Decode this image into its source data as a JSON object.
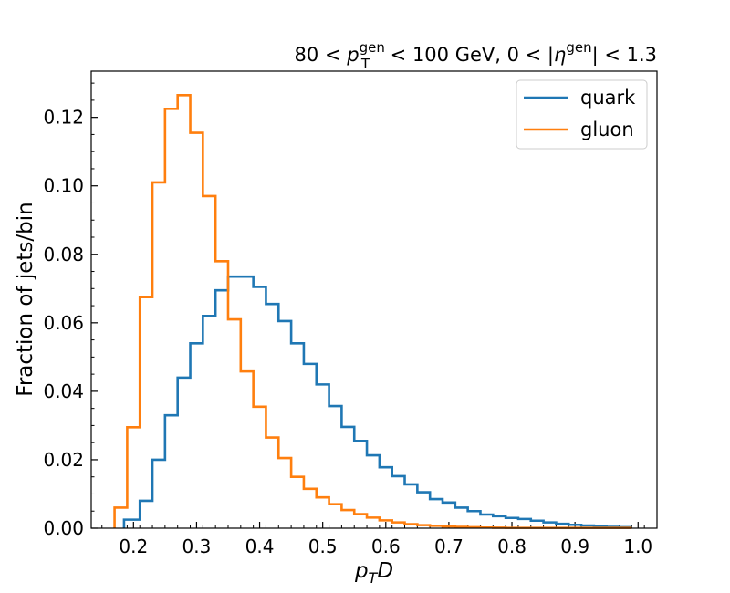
{
  "chart_data": {
    "type": "line",
    "title": {
      "prefix": "80 < ",
      "var1_base": "p",
      "var1_sub": "T",
      "var1_sup": "gen",
      "mid": " < 100 GeV, 0 < |",
      "var2_base": "η",
      "var2_sup": "gen",
      "suffix": "| < 1.3"
    },
    "xlabel": {
      "base": "p",
      "sub": "T",
      "rest": "D"
    },
    "ylabel": "Fraction of jets/bin",
    "xlim": [
      0.133,
      1.03
    ],
    "ylim": [
      0.0,
      0.1335
    ],
    "xticks": [
      0.2,
      0.3,
      0.4,
      0.5,
      0.6,
      0.7,
      0.8,
      0.9,
      1.0
    ],
    "xtick_labels": [
      "0.2",
      "0.3",
      "0.4",
      "0.5",
      "0.6",
      "0.7",
      "0.8",
      "0.9",
      "1.0"
    ],
    "yticks": [
      0.0,
      0.02,
      0.04,
      0.06,
      0.08,
      0.1,
      0.12
    ],
    "ytick_labels": [
      "0.00",
      "0.02",
      "0.04",
      "0.06",
      "0.08",
      "0.10",
      "0.12"
    ],
    "legend_position": "top-right",
    "bin_edges": [
      0.17,
      0.19,
      0.21,
      0.23,
      0.25,
      0.27,
      0.29,
      0.31,
      0.33,
      0.35,
      0.37,
      0.39,
      0.41,
      0.43,
      0.45,
      0.47,
      0.49,
      0.51,
      0.53,
      0.55,
      0.57,
      0.59,
      0.61,
      0.63,
      0.65,
      0.67,
      0.69,
      0.71,
      0.73,
      0.75,
      0.77,
      0.79,
      0.81,
      0.83,
      0.85,
      0.87,
      0.89,
      0.91,
      0.93,
      0.95,
      0.97,
      0.99
    ],
    "series": [
      {
        "name": "quark",
        "color": "#1f77b4",
        "start_edge": 0.185,
        "values": [
          0.0025,
          0.008,
          0.02,
          0.033,
          0.044,
          0.054,
          0.062,
          0.0695,
          0.0735,
          0.0735,
          0.0705,
          0.0655,
          0.0605,
          0.054,
          0.048,
          0.042,
          0.0357,
          0.0296,
          0.0255,
          0.0213,
          0.0178,
          0.0152,
          0.0128,
          0.0105,
          0.0085,
          0.0075,
          0.006,
          0.005,
          0.004,
          0.0035,
          0.003,
          0.0027,
          0.0022,
          0.0017,
          0.0013,
          0.001,
          0.0008,
          0.0006,
          0.0004,
          0.0003
        ]
      },
      {
        "name": "gluon",
        "color": "#ff7f0e",
        "start_edge": 0.17,
        "values": [
          0.006,
          0.0295,
          0.0675,
          0.101,
          0.1225,
          0.1265,
          0.1155,
          0.097,
          0.078,
          0.061,
          0.0458,
          0.0355,
          0.0265,
          0.0205,
          0.015,
          0.0115,
          0.009,
          0.007,
          0.0053,
          0.0041,
          0.0031,
          0.0023,
          0.0017,
          0.0012,
          0.0009,
          0.0007,
          0.0005,
          0.0004,
          0.0003,
          0.0002,
          0.00015,
          0.0001,
          0.0001,
          0.0001,
          0.0001,
          0.0001,
          0.0001,
          0.0001,
          0.0001,
          0.0001,
          0.0001
        ]
      }
    ]
  }
}
